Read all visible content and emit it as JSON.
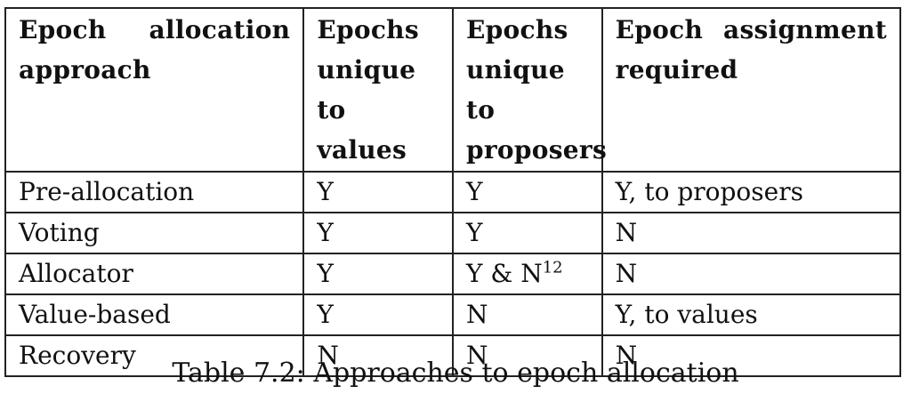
{
  "table": {
    "headers": [
      "Epoch allocation approach",
      "Epochs unique to values",
      "Epochs unique to proposers",
      "Epoch assignment required"
    ],
    "rows": [
      [
        "Pre-allocation",
        "Y",
        "Y",
        "Y, to proposers"
      ],
      [
        "Voting",
        "Y",
        "Y",
        "N"
      ],
      [
        "Allocator",
        "Y",
        "Y & N",
        "N"
      ],
      [
        "Value-based",
        "Y",
        "N",
        "Y, to values"
      ],
      [
        "Recovery",
        "N",
        "N",
        "N"
      ]
    ],
    "footnote_marker": "12"
  },
  "caption": "Table 7.2: Approaches to epoch allocation"
}
